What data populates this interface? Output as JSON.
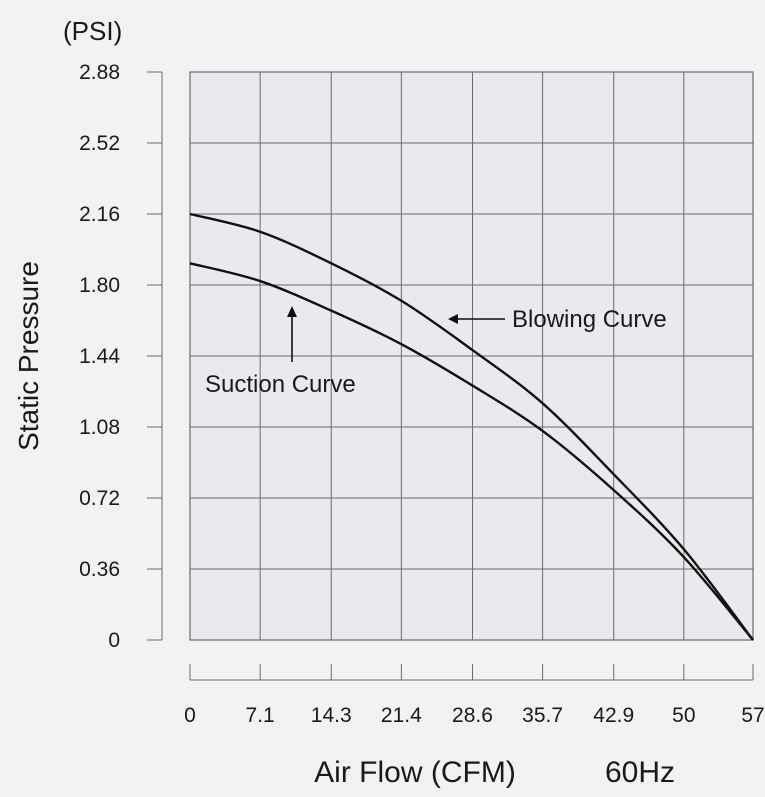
{
  "chart_data": {
    "type": "line",
    "units_label": "(PSI)",
    "ylabel": "Static Pressure",
    "xlabel": "Air Flow (CFM)",
    "frequency_label": "60Hz",
    "x_ticks": [
      "0",
      "7.1",
      "14.3",
      "21.4",
      "28.6",
      "35.7",
      "42.9",
      "50",
      "57"
    ],
    "y_ticks": [
      "0",
      "0.36",
      "0.72",
      "1.08",
      "1.44",
      "1.80",
      "2.16",
      "2.52",
      "2.88"
    ],
    "xlim": [
      0,
      57
    ],
    "ylim": [
      0,
      2.88
    ],
    "grid": true,
    "series": [
      {
        "name": "Blowing Curve",
        "x": [
          0,
          7.1,
          14.3,
          21.4,
          28.6,
          35.7,
          42.9,
          50,
          57
        ],
        "y": [
          2.16,
          2.07,
          1.91,
          1.72,
          1.47,
          1.2,
          0.84,
          0.46,
          0
        ]
      },
      {
        "name": "Suction Curve",
        "x": [
          0,
          7.1,
          14.3,
          21.4,
          28.6,
          35.7,
          42.9,
          50,
          57
        ],
        "y": [
          1.91,
          1.82,
          1.67,
          1.5,
          1.29,
          1.06,
          0.76,
          0.42,
          0
        ]
      }
    ],
    "annotations": [
      {
        "text": "Blowing Curve",
        "arrow": "left"
      },
      {
        "text": "Suction Curve",
        "arrow": "up"
      }
    ],
    "colors": {
      "grid": "#6b6b6b",
      "curve": "#111111",
      "background": "#f2f2f4"
    }
  }
}
